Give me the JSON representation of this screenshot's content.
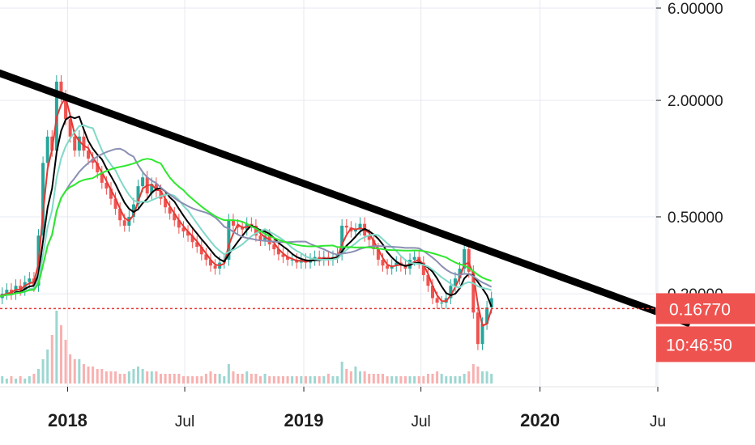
{
  "chart_data": {
    "type": "line",
    "yscale": "log",
    "grid": true,
    "colors": {
      "candle_up": "#26a69a",
      "candle_down": "#ef5350",
      "ma_red": "#e53935",
      "ma_black": "#000000",
      "ma_teal": "#7fd8c8",
      "ma_gray": "#8b8fb3",
      "ma_green": "#2ee82e",
      "trendline": "#000000",
      "price_line": "#e53935",
      "badge": "#ef5350"
    },
    "y_ticks": [
      {
        "value": 6.0,
        "label": "6.00000"
      },
      {
        "value": 2.0,
        "label": "2.00000"
      },
      {
        "value": 0.5,
        "label": "0.50000"
      },
      {
        "value": 0.2,
        "label": "0.20000"
      }
    ],
    "x_ticks": [
      {
        "date": "2018-01-01",
        "label": "2018",
        "year": true
      },
      {
        "date": "2018-07-01",
        "label": "Jul",
        "year": false
      },
      {
        "date": "2019-01-01",
        "label": "2019",
        "year": true
      },
      {
        "date": "2019-07-01",
        "label": "Jul",
        "year": false
      },
      {
        "date": "2020-01-01",
        "label": "2020",
        "year": true
      },
      {
        "date": "2020-07-01",
        "label": "Ju",
        "year": false
      }
    ],
    "price": {
      "date": "2017-09-01",
      "close": [
        0.19,
        0.2,
        0.19,
        0.2,
        0.21,
        0.2,
        0.22,
        0.21,
        0.23,
        0.24,
        0.22,
        0.4,
        0.95,
        1.3,
        1.1,
        2.5,
        2.1,
        1.6,
        1.3,
        1.1,
        1.3,
        1.1,
        1.0,
        0.95,
        0.85,
        0.75,
        0.7,
        0.62,
        0.55,
        0.48,
        0.45,
        0.5,
        0.58,
        0.72,
        0.8,
        0.66,
        0.74,
        0.68,
        0.62,
        0.56,
        0.52,
        0.48,
        0.44,
        0.42,
        0.4,
        0.37,
        0.35,
        0.32,
        0.3,
        0.28,
        0.27,
        0.29,
        0.3,
        0.48,
        0.45,
        0.44,
        0.43,
        0.46,
        0.45,
        0.4,
        0.38,
        0.4,
        0.36,
        0.34,
        0.32,
        0.31,
        0.3,
        0.3,
        0.29,
        0.3,
        0.29,
        0.3,
        0.31,
        0.3,
        0.31,
        0.3,
        0.31,
        0.32,
        0.45,
        0.44,
        0.42,
        0.43,
        0.46,
        0.4,
        0.38,
        0.34,
        0.3,
        0.28,
        0.27,
        0.28,
        0.29,
        0.28,
        0.27,
        0.3,
        0.31,
        0.29,
        0.25,
        0.22,
        0.19,
        0.18,
        0.18,
        0.19,
        0.22,
        0.24,
        0.27,
        0.34,
        0.26,
        0.16,
        0.11,
        0.14,
        0.17,
        0.19
      ],
      "last": 0.1677,
      "last_label": "0.16770",
      "countdown": "10:46:50"
    },
    "moving_averages": [
      {
        "color_key": "ma_red",
        "period": 3
      },
      {
        "color_key": "ma_black",
        "period": 6
      },
      {
        "color_key": "ma_teal",
        "period": 9
      },
      {
        "color_key": "ma_gray",
        "period": 18
      },
      {
        "color_key": "ma_green",
        "period": 24
      }
    ],
    "volume": {
      "values": [
        2,
        2,
        2,
        3,
        2,
        3,
        2,
        3,
        2,
        3,
        4,
        6,
        10,
        14,
        20,
        30,
        24,
        18,
        12,
        10,
        10,
        8,
        7,
        7,
        6,
        6,
        5,
        5,
        5,
        4,
        4,
        5,
        6,
        7,
        6,
        5,
        5,
        5,
        4,
        4,
        4,
        4,
        4,
        3,
        3,
        3,
        3,
        3,
        4,
        5,
        4,
        4,
        3,
        8,
        5,
        4,
        4,
        5,
        4,
        4,
        3,
        4,
        3,
        3,
        3,
        3,
        3,
        3,
        3,
        3,
        3,
        3,
        3,
        3,
        3,
        4,
        3,
        3,
        9,
        6,
        5,
        7,
        5,
        5,
        4,
        4,
        4,
        4,
        3,
        3,
        3,
        3,
        3,
        3,
        3,
        3,
        3,
        4,
        4,
        5,
        4,
        3,
        3,
        3,
        3,
        4,
        5,
        8,
        7,
        5,
        5,
        4
      ]
    },
    "trendline": [
      {
        "date": "2017-09-01",
        "value": 2.9
      },
      {
        "date": "2020-08-20",
        "value": 0.14
      }
    ]
  }
}
